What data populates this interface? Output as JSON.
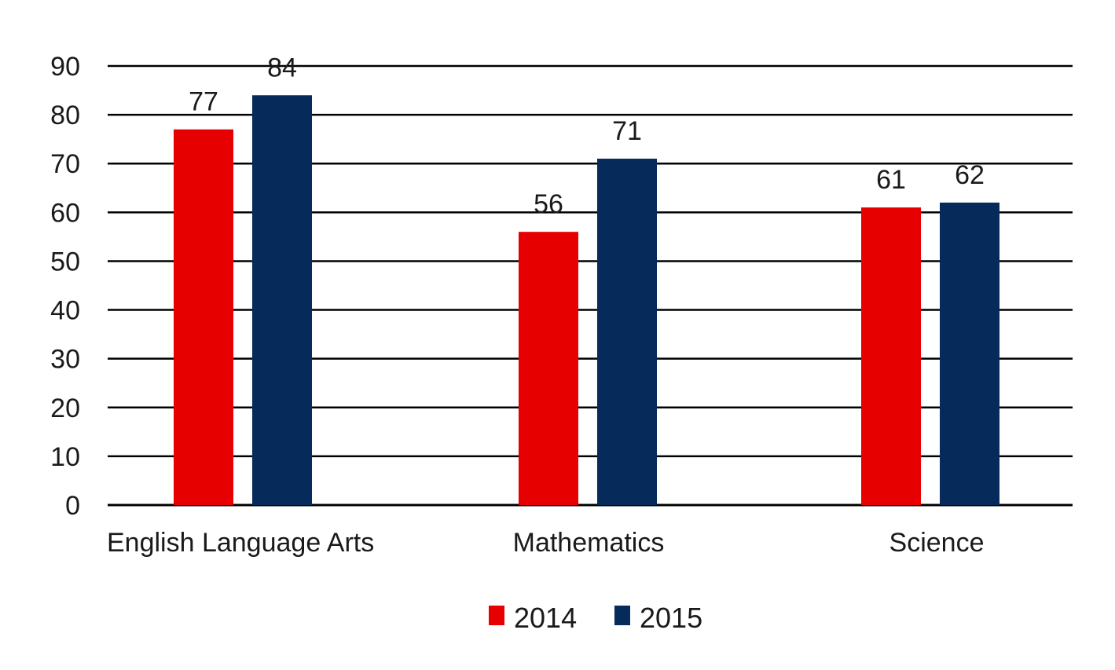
{
  "chart_data": {
    "type": "bar",
    "categories": [
      "English Language Arts",
      "Mathematics",
      "Science"
    ],
    "series": [
      {
        "name": "2014",
        "values": [
          77,
          56,
          61
        ],
        "color": "#e60000"
      },
      {
        "name": "2015",
        "values": [
          84,
          71,
          62
        ],
        "color": "#062a5a"
      }
    ],
    "ylim": [
      0,
      90
    ],
    "yticks": [
      0,
      10,
      20,
      30,
      40,
      50,
      60,
      70,
      80,
      90
    ],
    "grid": true,
    "legend": "bottom-center",
    "title": "",
    "xlabel": "",
    "ylabel": ""
  }
}
